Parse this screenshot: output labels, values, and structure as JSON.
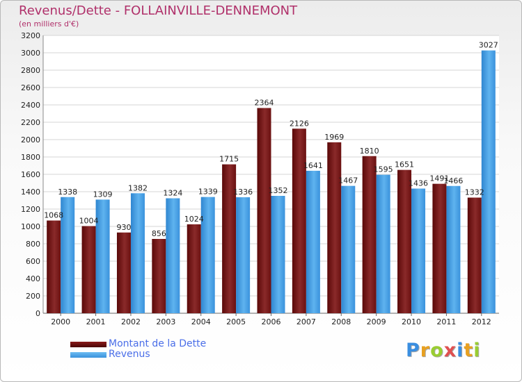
{
  "chart_data": {
    "type": "bar",
    "title": "Revenus/Dette - FOLLAINVILLE-DENNEMONT",
    "subtitle": "(en milliers d'€)",
    "categories": [
      "2000",
      "2001",
      "2002",
      "2003",
      "2004",
      "2005",
      "2006",
      "2007",
      "2008",
      "2009",
      "2010",
      "2011",
      "2012"
    ],
    "series": [
      {
        "name": "Montant de la Dette",
        "color": "#7a1414",
        "values": [
          1068,
          1004,
          930,
          856,
          1024,
          1715,
          2364,
          2126,
          1969,
          1810,
          1651,
          1491,
          1332
        ],
        "labels": [
          "1068",
          "1004",
          "930",
          "856",
          "1024",
          "1715",
          "2364",
          "2126",
          "1969",
          "1810",
          "1651",
          "1491",
          "1332"
        ]
      },
      {
        "name": "Revenus",
        "color": "#4aa3e6",
        "values": [
          1338,
          1309,
          1382,
          1324,
          1339,
          1336,
          1352,
          1641,
          1467,
          1595,
          1436,
          1466,
          3027
        ],
        "labels": [
          "1338",
          "1309",
          "1382",
          "1324",
          "1339",
          "1336",
          "1352",
          "1641",
          "1467",
          "1595",
          "1436",
          "1466",
          "3027"
        ]
      }
    ],
    "ylim": [
      0,
      3200
    ],
    "yticks": [
      0,
      200,
      400,
      600,
      800,
      1000,
      1200,
      1400,
      1600,
      1800,
      2000,
      2200,
      2400,
      2600,
      2800,
      3000,
      3200
    ],
    "grid": true,
    "legend_position": "bottom-left"
  },
  "logo": {
    "letters": [
      "P",
      "r",
      "o",
      "x",
      "i",
      "t",
      "i"
    ],
    "colors": [
      "#3a8ee0",
      "#e8a020",
      "#9acd32",
      "#e05050",
      "#3a8ee0",
      "#e8a020",
      "#9acd32"
    ]
  }
}
